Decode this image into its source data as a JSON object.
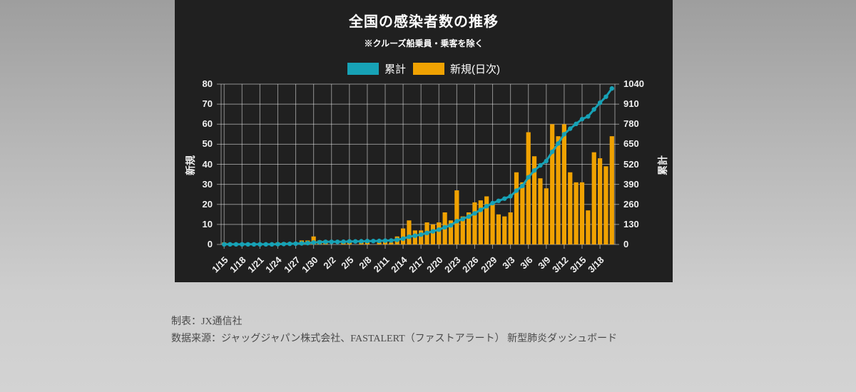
{
  "panel": {
    "title": "全国の感染者数の推移",
    "subtitle": "※クルーズ船乗員・乗客を除く"
  },
  "legend": [
    {
      "label": "累計",
      "color": "#17a2b6"
    },
    {
      "label": "新規(日次)",
      "color": "#f0a202"
    }
  ],
  "footer": {
    "line1": "制表：JX通信社",
    "line2": "数据来源：ジャッグジャパン株式会社、FASTALERT（ファストアラート）  新型肺炎ダッシュボード"
  },
  "colors": {
    "panel_bg": "#202020",
    "grid": "rgba(255,255,255,0.5)",
    "text": "#f0f0f0",
    "cumulative": "#17a2b6",
    "daily": "#f0a202"
  },
  "chart_data": {
    "type": "bar+line",
    "title": "全国の感染者数の推移",
    "subtitle": "※クルーズ船乗員・乗客を除く",
    "grid": true,
    "legend_position": "top",
    "x_dates": [
      "1/15",
      "1/16",
      "1/17",
      "1/18",
      "1/19",
      "1/20",
      "1/21",
      "1/22",
      "1/23",
      "1/24",
      "1/25",
      "1/26",
      "1/27",
      "1/28",
      "1/29",
      "1/30",
      "1/31",
      "2/1",
      "2/2",
      "2/3",
      "2/4",
      "2/5",
      "2/6",
      "2/7",
      "2/8",
      "2/9",
      "2/10",
      "2/11",
      "2/12",
      "2/13",
      "2/14",
      "2/15",
      "2/16",
      "2/17",
      "2/18",
      "2/19",
      "2/20",
      "2/21",
      "2/22",
      "2/23",
      "2/24",
      "2/25",
      "2/26",
      "2/27",
      "2/28",
      "2/29",
      "3/1",
      "3/2",
      "3/3",
      "3/4",
      "3/5",
      "3/6",
      "3/7",
      "3/8",
      "3/9",
      "3/10",
      "3/11",
      "3/12",
      "3/13",
      "3/14",
      "3/15",
      "3/16",
      "3/17",
      "3/18",
      "3/19",
      "3/20"
    ],
    "x_tick_every": 3,
    "x_tick_labels": [
      "1/15",
      "1/18",
      "1/21",
      "1/24",
      "1/27",
      "1/30",
      "2/2",
      "2/5",
      "2/8",
      "2/11",
      "2/14",
      "2/17",
      "2/20",
      "2/23",
      "2/26",
      "2/29",
      "3/3",
      "3/6",
      "3/9",
      "3/12",
      "3/15",
      "3/18"
    ],
    "left_axis": {
      "label": "新規",
      "min": 0,
      "max": 80,
      "step": 10
    },
    "right_axis": {
      "label": "累計",
      "min": 0,
      "max": 1040,
      "step": 130
    },
    "series": [
      {
        "name": "新規(日次)",
        "type": "bar",
        "axis": "left",
        "color": "#f0a202",
        "values": [
          1,
          0,
          0,
          0,
          0,
          0,
          0,
          0,
          0,
          1,
          1,
          1,
          1,
          2,
          2,
          4,
          2,
          2,
          0,
          0,
          1,
          2,
          0,
          1,
          1,
          0,
          1,
          2,
          1,
          4,
          8,
          12,
          7,
          7,
          11,
          10,
          11,
          16,
          12,
          27,
          14,
          16,
          21,
          22,
          24,
          20,
          15,
          14,
          16,
          36,
          31,
          56,
          44,
          33,
          28,
          60,
          54,
          60,
          36,
          31,
          31,
          17,
          46,
          43,
          39,
          54
        ]
      },
      {
        "name": "累計",
        "type": "line",
        "axis": "right",
        "color": "#17a2b6",
        "values": [
          1,
          1,
          1,
          1,
          1,
          1,
          1,
          1,
          1,
          2,
          3,
          4,
          5,
          7,
          9,
          13,
          15,
          17,
          17,
          17,
          18,
          20,
          20,
          21,
          22,
          22,
          23,
          25,
          26,
          30,
          38,
          50,
          57,
          64,
          75,
          85,
          96,
          112,
          124,
          151,
          165,
          181,
          202,
          224,
          248,
          268,
          283,
          297,
          313,
          349,
          380,
          436,
          480,
          513,
          541,
          601,
          655,
          715,
          751,
          782,
          813,
          830,
          876,
          919,
          958,
          1012
        ]
      }
    ]
  }
}
